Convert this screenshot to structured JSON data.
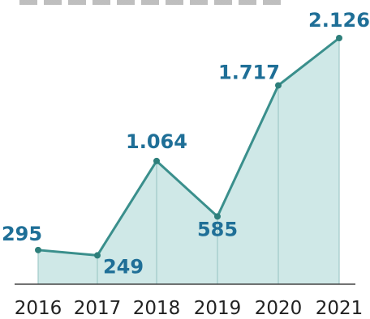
{
  "colors": {
    "area_fill": "#cfe8e7",
    "line": "#3a8f8c",
    "marker": "#2e7f7b",
    "divider": "#9fc9c7",
    "baseline": "#444444",
    "value_text": "#1f6f97"
  },
  "chart_data": {
    "type": "area",
    "title": "",
    "xlabel": "",
    "ylabel": "",
    "categories": [
      "2016",
      "2017",
      "2018",
      "2019",
      "2020",
      "2021"
    ],
    "series": [
      {
        "values": [
          295,
          249,
          1064,
          585,
          1717,
          2126
        ],
        "labels": [
          "295",
          "249",
          "1.064",
          "585",
          "1.717",
          "2.126"
        ]
      }
    ],
    "ylim": [
      0,
      2126
    ],
    "grid": false,
    "legend": "none",
    "markers": true
  }
}
